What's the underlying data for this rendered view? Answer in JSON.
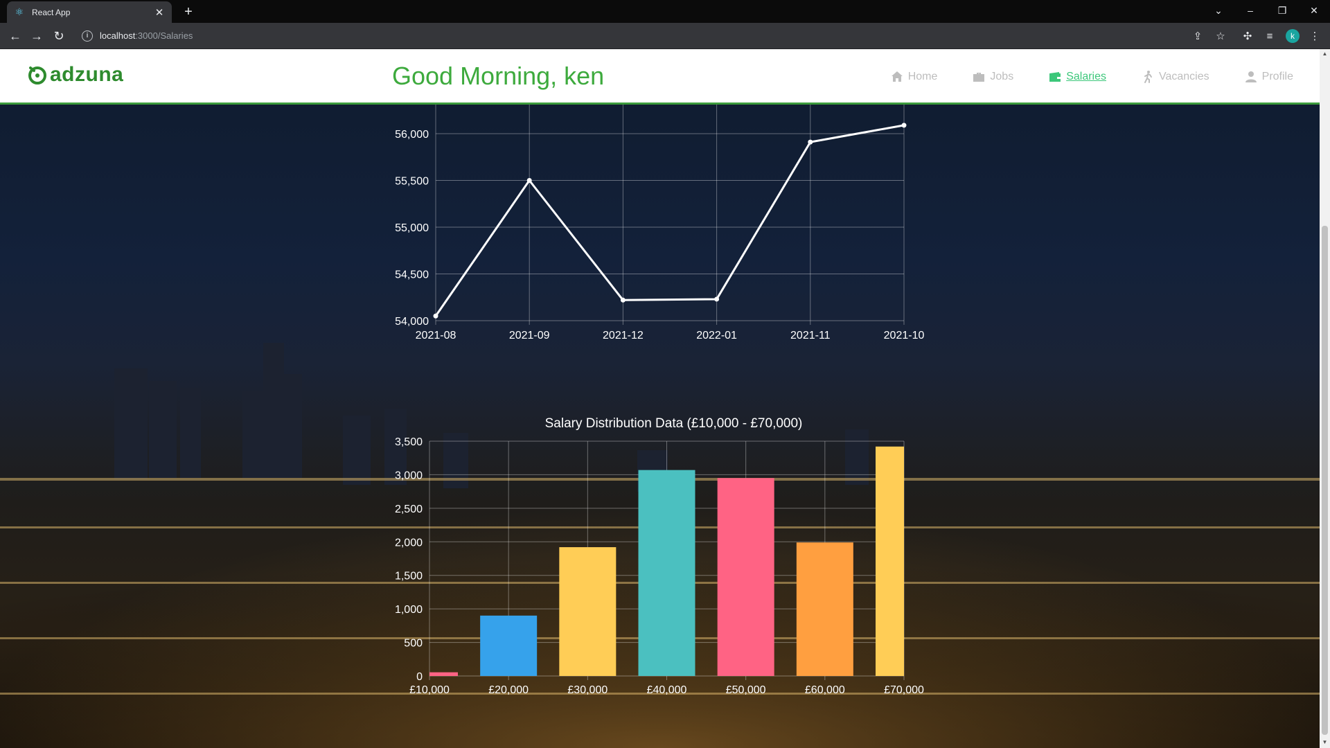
{
  "browser": {
    "tab_title": "React App",
    "url_host": "localhost",
    "url_path": ":3000/Salaries",
    "profile_initial": "k"
  },
  "header": {
    "logo_text": "adzuna",
    "greeting": "Good Morning, ken",
    "nav": [
      {
        "label": "Home",
        "icon": "home-icon",
        "active": false
      },
      {
        "label": "Jobs",
        "icon": "briefcase-icon",
        "active": false
      },
      {
        "label": "Salaries",
        "icon": "wallet-icon",
        "active": true
      },
      {
        "label": "Vacancies",
        "icon": "walking-person-icon",
        "active": false
      },
      {
        "label": "Profile",
        "icon": "user-icon",
        "active": false
      }
    ]
  },
  "colors": {
    "brand_green": "#3daa3d",
    "active_nav": "#3cc77a",
    "line": "#ffffff",
    "bar_colors": [
      "#ff6384",
      "#36a2eb",
      "#ffcd56",
      "#4bc0c0",
      "#ff6384",
      "#ff9f40",
      "#ffcd56"
    ]
  },
  "chart_data": [
    {
      "type": "line",
      "title": "",
      "categories": [
        "2021-08",
        "2021-09",
        "2021-12",
        "2022-01",
        "2021-11",
        "2021-10"
      ],
      "values": [
        54050,
        55500,
        54220,
        54230,
        55910,
        56090
      ],
      "ylim": [
        54000,
        56000
      ],
      "yticks": [
        "54,000",
        "54,500",
        "55,000",
        "55,500",
        "56,000"
      ],
      "grid": true
    },
    {
      "type": "bar",
      "title": "Salary Distribution Data (£10,000 - £70,000)",
      "categories": [
        "£10,000",
        "£20,000",
        "£30,000",
        "£40,000",
        "£50,000",
        "£60,000",
        "£70,000"
      ],
      "values": [
        55,
        900,
        1920,
        3070,
        2950,
        1990,
        3420
      ],
      "ylim": [
        0,
        3500
      ],
      "yticks": [
        "0",
        "500",
        "1,000",
        "1,500",
        "2,000",
        "2,500",
        "3,000",
        "3,500"
      ],
      "grid": true
    }
  ]
}
